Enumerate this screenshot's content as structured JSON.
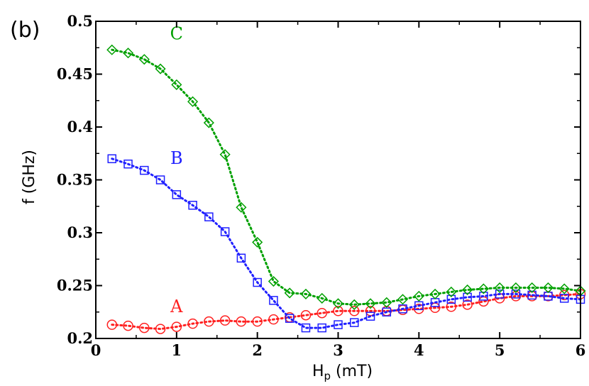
{
  "panel_label": "(b)",
  "chart_data": {
    "type": "line",
    "title": "",
    "xlabel_main": "H",
    "xlabel_sub": "p",
    "xlabel_unit": " (mT)",
    "ylabel": "f (GHz)",
    "xlim": [
      0,
      6
    ],
    "ylim": [
      0.2,
      0.5
    ],
    "xticks": [
      0,
      1,
      2,
      3,
      4,
      5,
      6
    ],
    "xtick_labels": [
      "0",
      "1",
      "2",
      "3",
      "4",
      "5",
      "6"
    ],
    "yticks": [
      0.2,
      0.25,
      0.3,
      0.35,
      0.4,
      0.45,
      0.5
    ],
    "ytick_labels": [
      "0.2",
      "0.25",
      "0.3",
      "0.35",
      "0.4",
      "0.45",
      "0.5"
    ],
    "grid": false,
    "x": [
      0.2,
      0.4,
      0.6,
      0.8,
      1.0,
      1.2,
      1.4,
      1.6,
      1.8,
      2.0,
      2.2,
      2.4,
      2.6,
      2.8,
      3.0,
      3.2,
      3.4,
      3.6,
      3.8,
      4.0,
      4.2,
      4.4,
      4.6,
      4.8,
      5.0,
      5.2,
      5.4,
      5.6,
      5.8,
      6.0
    ],
    "series": [
      {
        "name": "A",
        "color": "#ff2020",
        "marker": "circle",
        "values": [
          0.213,
          0.212,
          0.21,
          0.209,
          0.211,
          0.214,
          0.216,
          0.217,
          0.216,
          0.216,
          0.218,
          0.22,
          0.222,
          0.224,
          0.226,
          0.226,
          0.226,
          0.226,
          0.227,
          0.228,
          0.229,
          0.23,
          0.232,
          0.235,
          0.238,
          0.24,
          0.24,
          0.24,
          0.241,
          0.242
        ],
        "label_at": {
          "x": 1.0,
          "y": 0.225
        }
      },
      {
        "name": "B",
        "color": "#2020ff",
        "marker": "square",
        "values": [
          0.37,
          0.365,
          0.359,
          0.35,
          0.336,
          0.326,
          0.315,
          0.301,
          0.276,
          0.253,
          0.236,
          0.219,
          0.21,
          0.21,
          0.213,
          0.215,
          0.221,
          0.225,
          0.228,
          0.231,
          0.234,
          0.237,
          0.239,
          0.24,
          0.242,
          0.242,
          0.241,
          0.24,
          0.238,
          0.237
        ],
        "label_at": {
          "x": 1.0,
          "y": 0.365
        }
      },
      {
        "name": "C",
        "color": "#00a000",
        "marker": "diamond",
        "values": [
          0.473,
          0.47,
          0.464,
          0.455,
          0.44,
          0.424,
          0.404,
          0.374,
          0.324,
          0.291,
          0.254,
          0.243,
          0.242,
          0.238,
          0.233,
          0.232,
          0.233,
          0.234,
          0.237,
          0.24,
          0.242,
          0.244,
          0.246,
          0.247,
          0.248,
          0.248,
          0.248,
          0.248,
          0.247,
          0.245
        ],
        "label_at": {
          "x": 1.0,
          "y": 0.483
        }
      }
    ]
  }
}
